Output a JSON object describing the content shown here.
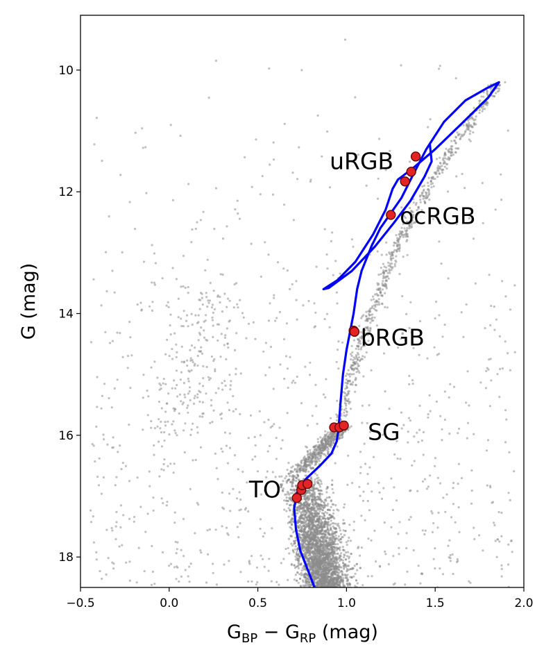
{
  "chart_data": {
    "type": "scatter",
    "title": "",
    "xlabel": "G_BP − G_RP (mag)",
    "xlabel_parts": {
      "g1": "G",
      "sub1": "BP",
      "minus": " − ",
      "g2": "G",
      "sub2": "RP",
      "unit": " (mag)"
    },
    "ylabel": "G (mag)",
    "xlim": [
      -0.5,
      2.0
    ],
    "ylim": [
      18.5,
      9.1
    ],
    "y_inverted": true,
    "grid": false,
    "legend": "none",
    "xticks": [
      -0.5,
      0.0,
      0.5,
      1.0,
      1.5,
      2.0
    ],
    "xtick_labels": [
      "−0.5",
      "0.0",
      "0.5",
      "1.0",
      "1.5",
      "2.0"
    ],
    "yticks": [
      10,
      12,
      14,
      16,
      18
    ],
    "ytick_labels": [
      "10",
      "12",
      "14",
      "16",
      "18"
    ],
    "colors": {
      "field_stars": "#8c8c8c",
      "isochrone": "#0000ff",
      "selected_fill": "#e32424",
      "selected_edge": "#5a0000"
    },
    "series": [
      {
        "kind": "scatter-cloud",
        "description_components": [
          {
            "region": "main-sequence",
            "x_center_at_G": [
              [
                17.0,
                0.74
              ],
              [
                18.5,
                0.86
              ]
            ],
            "x_spread": 0.08,
            "G_range": [
              16.6,
              18.5
            ]
          },
          {
            "region": "subgiant-branch",
            "G_range": [
              15.9,
              16.6
            ]
          },
          {
            "region": "red-giant-branch",
            "G_range": [
              10.1,
              15.9
            ]
          },
          {
            "region": "field-stars",
            "x_range": [
              -0.45,
              1.95
            ],
            "G_range": [
              9.3,
              18.5
            ]
          }
        ]
      },
      {
        "kind": "line",
        "points": [
          [
            0.82,
            18.5
          ],
          [
            0.78,
            18.2
          ],
          [
            0.74,
            17.9
          ],
          [
            0.715,
            17.55
          ],
          [
            0.705,
            17.2
          ],
          [
            0.72,
            16.95
          ],
          [
            0.77,
            16.72
          ],
          [
            0.85,
            16.5
          ],
          [
            0.915,
            16.3
          ],
          [
            0.945,
            16.1
          ],
          [
            0.955,
            15.9
          ],
          [
            0.965,
            15.5
          ],
          [
            0.98,
            15.0
          ],
          [
            1.0,
            14.6
          ],
          [
            1.02,
            14.3
          ],
          [
            1.04,
            14.0
          ],
          [
            1.06,
            13.6
          ],
          [
            1.085,
            13.3
          ],
          [
            1.14,
            12.9
          ],
          [
            1.19,
            12.6
          ],
          [
            1.25,
            12.35
          ],
          [
            1.31,
            12.1
          ],
          [
            1.37,
            11.75
          ],
          [
            1.45,
            11.3
          ],
          [
            1.55,
            10.85
          ],
          [
            1.67,
            10.5
          ],
          [
            1.79,
            10.3
          ],
          [
            1.86,
            10.2
          ],
          [
            1.8,
            10.45
          ],
          [
            1.66,
            10.85
          ],
          [
            1.5,
            11.3
          ],
          [
            1.38,
            11.6
          ],
          [
            1.29,
            11.8
          ],
          [
            1.26,
            11.95
          ],
          [
            1.22,
            12.3
          ],
          [
            1.15,
            12.7
          ],
          [
            1.05,
            13.15
          ],
          [
            0.95,
            13.45
          ],
          [
            0.87,
            13.6
          ],
          [
            0.9,
            13.58
          ],
          [
            1.03,
            13.3
          ],
          [
            1.16,
            12.9
          ],
          [
            1.27,
            12.5
          ],
          [
            1.36,
            12.15
          ],
          [
            1.44,
            11.75
          ],
          [
            1.48,
            11.5
          ],
          [
            1.47,
            11.22
          ]
        ]
      },
      {
        "kind": "scatter-highlight",
        "points": [
          [
            0.72,
            17.03
          ],
          [
            0.745,
            16.9
          ],
          [
            0.75,
            16.82
          ],
          [
            0.78,
            16.8
          ],
          [
            0.93,
            15.87
          ],
          [
            0.96,
            15.87
          ],
          [
            0.985,
            15.84
          ],
          [
            1.04,
            14.28
          ],
          [
            1.045,
            14.3
          ],
          [
            1.25,
            12.38
          ],
          [
            1.33,
            11.83
          ],
          [
            1.365,
            11.67
          ],
          [
            1.39,
            11.42
          ]
        ]
      }
    ],
    "annotations": [
      {
        "text": "uRGB",
        "x": 0.905,
        "y": 11.5
      },
      {
        "text": "ocRGB",
        "x": 1.3,
        "y": 12.4
      },
      {
        "text": "bRGB",
        "x": 1.08,
        "y": 14.4
      },
      {
        "text": "SG",
        "x": 1.12,
        "y": 15.95
      },
      {
        "text": "TO",
        "x": 0.45,
        "y": 16.9
      }
    ]
  }
}
